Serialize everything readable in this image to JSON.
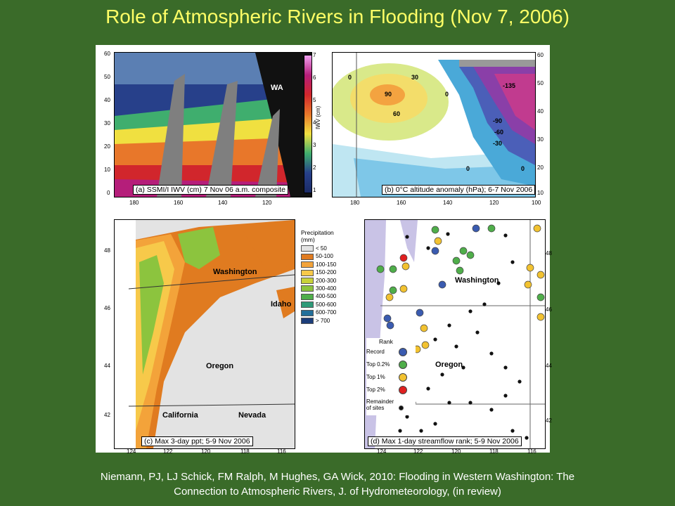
{
  "title": "Role of Atmospheric Rivers in Flooding  (Nov 7, 2006)",
  "citation": {
    "line1": "Niemann, PJ, LJ Schick, FM Ralph, M Hughes, GA Wick, 2010: Flooding in Western Washington: The",
    "line2": "Connection to Atmospheric Rivers, J. of Hydrometeorology, (in review)"
  },
  "panel_a": {
    "caption": "(a) SSMI/I IWV (cm) 7 Nov 06 a.m. composite",
    "state_label": "WA",
    "colorbar_label": "IWV (cm)",
    "colorbar_ticks": [
      "7",
      "6",
      "5",
      "4",
      "3",
      "2",
      "1"
    ],
    "y_ticks": [
      "60",
      "50",
      "40",
      "30",
      "20",
      "10",
      "0"
    ],
    "x_ticks": [
      "180",
      "160",
      "140",
      "120"
    ]
  },
  "panel_b": {
    "caption": "(b) 0°C altitude anomaly (hPa); 6-7 Nov 2006",
    "contour_labels": [
      "0",
      "30",
      "90",
      "60",
      "0",
      "-135",
      "-90",
      "-60",
      "-30",
      "0",
      "0"
    ],
    "y_ticks": [
      "60",
      "50",
      "40",
      "30",
      "20",
      "10"
    ],
    "x_ticks": [
      "180",
      "160",
      "140",
      "120",
      "100"
    ]
  },
  "panel_c": {
    "caption": "(c) Max 3-day ppt; 5-9 Nov 2006",
    "states": [
      "Washington",
      "Idaho",
      "Oregon",
      "California",
      "Nevada"
    ],
    "y_ticks": [
      "48",
      "46",
      "44",
      "42"
    ],
    "x_ticks": [
      "124",
      "122",
      "120",
      "118",
      "116"
    ],
    "legend_title": "Precipitation\n(mm)",
    "legend": [
      {
        "label": "< 50",
        "color": "#e3e3e3"
      },
      {
        "label": "50-100",
        "color": "#e07b20"
      },
      {
        "label": "100-150",
        "color": "#f3a33a"
      },
      {
        "label": "150-200",
        "color": "#f7c94a"
      },
      {
        "label": "200-300",
        "color": "#c8d23a"
      },
      {
        "label": "300-400",
        "color": "#8cc43e"
      },
      {
        "label": "400-500",
        "color": "#4fae4a"
      },
      {
        "label": "500-600",
        "color": "#2f9a78"
      },
      {
        "label": "600-700",
        "color": "#236f9a"
      },
      {
        "label": "> 700",
        "color": "#1c3d7a"
      }
    ]
  },
  "panel_d": {
    "caption": "(d) Max 1-day streamflow rank; 5-9 Nov 2006",
    "states": [
      "Washington",
      "Oregon"
    ],
    "y_ticks": [
      "48",
      "46",
      "44",
      "42"
    ],
    "x_ticks": [
      "124",
      "122",
      "120",
      "118",
      "116"
    ],
    "legend_title": "Rank",
    "legend": [
      {
        "label": "Record",
        "color": "#3a5bb0"
      },
      {
        "label": "Top 0.2%",
        "color": "#4fae4a"
      },
      {
        "label": "Top 1%",
        "color": "#f2c230"
      },
      {
        "label": "Top 2%",
        "color": "#e02020"
      },
      {
        "label": "Remainder\nof sites",
        "color": "#111111"
      }
    ]
  }
}
